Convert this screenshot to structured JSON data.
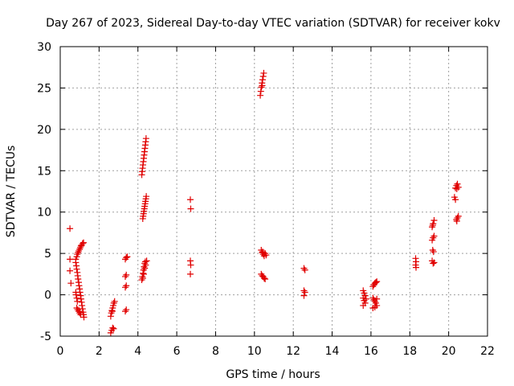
{
  "chart_data": {
    "type": "scatter",
    "title": "Day 267 of 2023, Sidereal Day-to-day VTEC variation (SDTVAR) for receiver kokv",
    "xlabel": "GPS time / hours",
    "ylabel": "SDTVAR / TECUs",
    "xlim": [
      0,
      22
    ],
    "ylim": [
      -5,
      30
    ],
    "xticks": [
      "0",
      "2",
      "4",
      "6",
      "8",
      "10",
      "12",
      "14",
      "16",
      "18",
      "20",
      "22"
    ],
    "yticks": [
      "-5",
      "0",
      "5",
      "10",
      "15",
      "20",
      "25",
      "30"
    ],
    "grid": true,
    "marker": "+",
    "color": "#e00000",
    "series": [
      {
        "name": "SDTVAR",
        "points": [
          [
            0.5,
            8.0
          ],
          [
            0.5,
            4.3
          ],
          [
            0.5,
            2.9
          ],
          [
            0.55,
            1.4
          ],
          [
            0.8,
            4.3
          ],
          [
            0.85,
            4.6
          ],
          [
            0.88,
            4.9
          ],
          [
            0.92,
            5.1
          ],
          [
            0.95,
            5.3
          ],
          [
            1.0,
            5.5
          ],
          [
            1.03,
            5.7
          ],
          [
            1.07,
            5.9
          ],
          [
            1.1,
            6.0
          ],
          [
            1.15,
            6.2
          ],
          [
            1.2,
            6.3
          ],
          [
            0.8,
            3.9
          ],
          [
            0.83,
            3.5
          ],
          [
            0.85,
            3.1
          ],
          [
            0.88,
            2.7
          ],
          [
            0.9,
            2.3
          ],
          [
            0.92,
            1.9
          ],
          [
            0.95,
            1.5
          ],
          [
            0.97,
            1.1
          ],
          [
            1.0,
            0.7
          ],
          [
            1.02,
            0.3
          ],
          [
            1.05,
            -0.1
          ],
          [
            1.07,
            -0.5
          ],
          [
            1.1,
            -0.9
          ],
          [
            1.12,
            -1.3
          ],
          [
            1.15,
            -1.7
          ],
          [
            1.18,
            -2.1
          ],
          [
            1.2,
            -2.4
          ],
          [
            1.22,
            -2.7
          ],
          [
            0.85,
            -1.6
          ],
          [
            0.9,
            -1.8
          ],
          [
            0.95,
            -2.0
          ],
          [
            1.0,
            -2.2
          ],
          [
            1.05,
            -2.4
          ],
          [
            0.8,
            0.3
          ],
          [
            0.82,
            0.0
          ],
          [
            0.85,
            -0.4
          ],
          [
            0.88,
            -0.8
          ],
          [
            2.6,
            -4.6
          ],
          [
            2.65,
            -4.3
          ],
          [
            2.7,
            -4.0
          ],
          [
            2.75,
            -4.1
          ],
          [
            2.6,
            -2.6
          ],
          [
            2.63,
            -2.2
          ],
          [
            2.66,
            -1.9
          ],
          [
            2.7,
            -1.6
          ],
          [
            2.73,
            -1.3
          ],
          [
            2.76,
            -1.0
          ],
          [
            2.8,
            -0.8
          ],
          [
            2.68,
            -2.0
          ],
          [
            3.4,
            4.5
          ],
          [
            3.35,
            4.3
          ],
          [
            3.45,
            4.6
          ],
          [
            3.4,
            2.4
          ],
          [
            3.35,
            2.2
          ],
          [
            3.4,
            1.1
          ],
          [
            3.35,
            0.9
          ],
          [
            3.4,
            -1.8
          ],
          [
            3.35,
            -2.0
          ],
          [
            4.2,
            14.5
          ],
          [
            4.22,
            14.9
          ],
          [
            4.24,
            15.3
          ],
          [
            4.26,
            15.7
          ],
          [
            4.28,
            16.1
          ],
          [
            4.3,
            16.5
          ],
          [
            4.32,
            16.9
          ],
          [
            4.34,
            17.3
          ],
          [
            4.36,
            17.7
          ],
          [
            4.38,
            18.1
          ],
          [
            4.4,
            18.5
          ],
          [
            4.42,
            18.9
          ],
          [
            4.25,
            9.2
          ],
          [
            4.27,
            9.5
          ],
          [
            4.29,
            9.8
          ],
          [
            4.31,
            10.1
          ],
          [
            4.33,
            10.4
          ],
          [
            4.35,
            10.7
          ],
          [
            4.37,
            11.0
          ],
          [
            4.39,
            11.3
          ],
          [
            4.41,
            11.6
          ],
          [
            4.43,
            11.9
          ],
          [
            4.2,
            1.8
          ],
          [
            4.23,
            2.2
          ],
          [
            4.26,
            2.6
          ],
          [
            4.29,
            3.0
          ],
          [
            4.32,
            3.4
          ],
          [
            4.35,
            3.8
          ],
          [
            4.38,
            4.0
          ],
          [
            4.3,
            2.5
          ],
          [
            4.35,
            3.2
          ],
          [
            4.4,
            3.6
          ],
          [
            4.25,
            2.0
          ],
          [
            4.45,
            4.1
          ],
          [
            6.7,
            11.5
          ],
          [
            6.72,
            10.4
          ],
          [
            6.7,
            4.1
          ],
          [
            6.72,
            3.6
          ],
          [
            6.7,
            2.5
          ],
          [
            10.3,
            24.1
          ],
          [
            10.33,
            24.6
          ],
          [
            10.36,
            25.1
          ],
          [
            10.39,
            25.6
          ],
          [
            10.42,
            26.0
          ],
          [
            10.45,
            26.4
          ],
          [
            10.48,
            26.8
          ],
          [
            10.4,
            25.3
          ],
          [
            10.35,
            5.4
          ],
          [
            10.4,
            5.1
          ],
          [
            10.45,
            4.9
          ],
          [
            10.5,
            4.7
          ],
          [
            10.55,
            5.0
          ],
          [
            10.6,
            4.8
          ],
          [
            10.42,
            5.2
          ],
          [
            10.35,
            2.5
          ],
          [
            10.4,
            2.3
          ],
          [
            10.45,
            2.2
          ],
          [
            10.5,
            2.0
          ],
          [
            10.55,
            1.9
          ],
          [
            12.55,
            3.2
          ],
          [
            12.6,
            3.0
          ],
          [
            12.55,
            0.5
          ],
          [
            12.6,
            0.3
          ],
          [
            12.55,
            -0.1
          ],
          [
            15.6,
            0.5
          ],
          [
            15.65,
            0.2
          ],
          [
            15.7,
            -0.1
          ],
          [
            15.6,
            -0.4
          ],
          [
            15.65,
            -0.7
          ],
          [
            15.7,
            -1.0
          ],
          [
            15.6,
            -1.3
          ],
          [
            15.75,
            -0.5
          ],
          [
            16.1,
            1.0
          ],
          [
            16.15,
            1.2
          ],
          [
            16.2,
            1.4
          ],
          [
            16.25,
            1.5
          ],
          [
            16.3,
            1.6
          ],
          [
            16.1,
            -0.4
          ],
          [
            16.15,
            -0.6
          ],
          [
            16.2,
            -0.8
          ],
          [
            16.25,
            -1.0
          ],
          [
            16.3,
            -1.3
          ],
          [
            16.1,
            -1.6
          ],
          [
            16.2,
            -1.5
          ],
          [
            16.3,
            -0.5
          ],
          [
            18.3,
            4.4
          ],
          [
            18.32,
            4.0
          ],
          [
            18.3,
            3.6
          ],
          [
            18.32,
            3.3
          ],
          [
            19.15,
            8.2
          ],
          [
            19.2,
            8.6
          ],
          [
            19.25,
            9.0
          ],
          [
            19.18,
            8.4
          ],
          [
            19.15,
            6.6
          ],
          [
            19.2,
            6.9
          ],
          [
            19.25,
            7.1
          ],
          [
            19.18,
            5.4
          ],
          [
            19.22,
            5.2
          ],
          [
            19.15,
            4.1
          ],
          [
            19.2,
            3.8
          ],
          [
            19.25,
            3.9
          ],
          [
            20.35,
            12.9
          ],
          [
            20.4,
            13.2
          ],
          [
            20.45,
            13.4
          ],
          [
            20.5,
            13.0
          ],
          [
            20.42,
            12.8
          ],
          [
            20.3,
            11.8
          ],
          [
            20.35,
            11.5
          ],
          [
            20.4,
            9.1
          ],
          [
            20.45,
            9.3
          ],
          [
            20.5,
            9.5
          ],
          [
            20.42,
            8.9
          ]
        ]
      }
    ]
  }
}
